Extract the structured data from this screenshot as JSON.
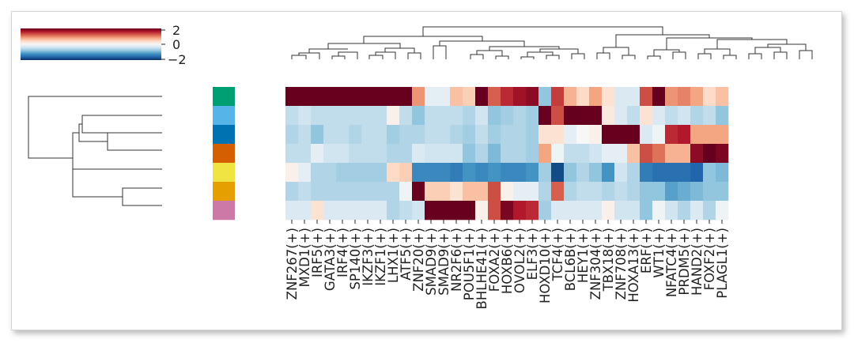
{
  "chart_data": {
    "type": "heatmap",
    "title": "",
    "colormap": "RdBu_r",
    "colorbar": {
      "ticks": [
        2,
        0,
        -2
      ],
      "tick_labels": [
        "2",
        "0",
        "−2"
      ],
      "range": [
        -2,
        2
      ],
      "placement": "top-left"
    },
    "row_dendrogram": true,
    "col_dendrogram": true,
    "row_colors": [
      "#009e73",
      "#56b4e9",
      "#0072b2",
      "#d55e00",
      "#f0e442",
      "#e69f00",
      "#cc79a7"
    ],
    "columns": [
      "ZNF267(+)",
      "MXD1(+)",
      "IRF5(+)",
      "GATA3(+)",
      "IRF4(+)",
      "SP140(+)",
      "IKZF3(+)",
      "IKZF1(+)",
      "LHX1(+)",
      "ATF5(+)",
      "ZNF20(+)",
      "SMAD9(+)",
      "SMAD9(+)",
      "NR2F6(+)",
      "POU5F1(+)",
      "BHLHE41(+)",
      "FOXA2(+)",
      "HOXB6(+)",
      "OVOL2(+)",
      "ELF3(+)",
      "HOXD10(+)",
      "TCF4(+)",
      "BCL6B(+)",
      "HEY1(+)",
      "ZNF304(+)",
      "TBX18(+)",
      "ZNF708(+)",
      "HOXA13(+)",
      "ERF(+)",
      "WT1(+)",
      "NFATC4(+)",
      "PRDM5(+)",
      "HAND2(+)",
      "FOXF2(+)",
      "PLAGL1(+)"
    ],
    "values": [
      [
        2,
        2,
        2,
        2,
        2,
        2,
        2,
        2,
        2,
        2,
        0.9,
        -0.2,
        -0.2,
        0.6,
        0.5,
        2,
        1.2,
        1.5,
        1.7,
        1.8,
        -0.8,
        1.4,
        0.7,
        0.4,
        0.8,
        0.3,
        -0.3,
        -0.3,
        1.3,
        2,
        0.9,
        1.0,
        0.8,
        0.4,
        0.6
      ],
      [
        -0.5,
        -0.4,
        -0.5,
        -0.5,
        -0.5,
        -0.5,
        -0.5,
        -0.5,
        0.1,
        -0.5,
        -0.8,
        -0.5,
        -0.5,
        -0.5,
        -0.6,
        -0.4,
        -0.8,
        -0.7,
        -0.6,
        -0.7,
        2,
        1.3,
        2,
        2,
        2,
        0.2,
        -0.3,
        -0.5,
        0.3,
        -0.3,
        -0.5,
        -0.4,
        -0.6,
        -0.5,
        -0.8
      ],
      [
        -0.6,
        -0.5,
        -0.8,
        -0.5,
        -0.5,
        -0.6,
        -0.5,
        -0.5,
        -0.7,
        -0.6,
        -0.6,
        -0.5,
        -0.5,
        -0.6,
        -0.7,
        -0.5,
        -0.7,
        -0.6,
        -0.6,
        -0.7,
        0.3,
        0.3,
        -0.2,
        0,
        0.1,
        2,
        2,
        2,
        -0.3,
        -0.1,
        1.5,
        1.6,
        0.8,
        0.8,
        0.8
      ],
      [
        -0.5,
        -0.5,
        -0.2,
        -0.4,
        -0.4,
        -0.5,
        -0.5,
        -0.5,
        -0.6,
        -0.6,
        -0.3,
        -0.4,
        -0.4,
        -0.4,
        -0.8,
        -0.6,
        -0.9,
        -0.6,
        -0.6,
        -0.7,
        0.8,
        -0.1,
        -0.5,
        -0.5,
        -0.4,
        -0.2,
        -0.2,
        0.6,
        1.3,
        1.1,
        0.7,
        0.7,
        1.8,
        2,
        1.9
      ],
      [
        0.1,
        -0.2,
        -0.6,
        -0.6,
        -0.7,
        -0.7,
        -0.7,
        -0.7,
        0.4,
        0.5,
        -1.3,
        -1.3,
        -1.3,
        -1.4,
        -1.2,
        -1.3,
        -1.2,
        -1.3,
        -1.3,
        -1.2,
        -0.7,
        -1.8,
        -0.8,
        -0.6,
        -0.8,
        -1.2,
        -0.4,
        -0.6,
        -1.4,
        -1.5,
        -1.5,
        -1.5,
        -1.6,
        -0.8,
        -0.9
      ],
      [
        -0.6,
        -0.5,
        -0.6,
        -0.6,
        -0.6,
        -0.6,
        -0.6,
        -0.6,
        -0.6,
        -0.1,
        2,
        0.5,
        0.5,
        0.3,
        0.6,
        0.6,
        1.3,
        0.1,
        -0.2,
        -0.2,
        -0.6,
        1.2,
        -0.6,
        -0.5,
        -0.5,
        -0.6,
        -0.5,
        -0.6,
        -0.8,
        -0.8,
        -1.1,
        -1.0,
        -0.9,
        -0.8,
        -0.8
      ],
      [
        -0.3,
        -0.3,
        0.3,
        -0.3,
        -0.3,
        -0.3,
        -0.3,
        -0.3,
        -0.6,
        -0.5,
        -0.4,
        2,
        2,
        2,
        2,
        0.1,
        1.3,
        1.9,
        1.6,
        1.5,
        -0.7,
        -0.3,
        -0.3,
        -0.3,
        -0.3,
        0.1,
        -0.4,
        -0.4,
        -0.8,
        -0.1,
        -0.4,
        -0.6,
        -0.3,
        -0.6,
        -0.1
      ]
    ]
  }
}
